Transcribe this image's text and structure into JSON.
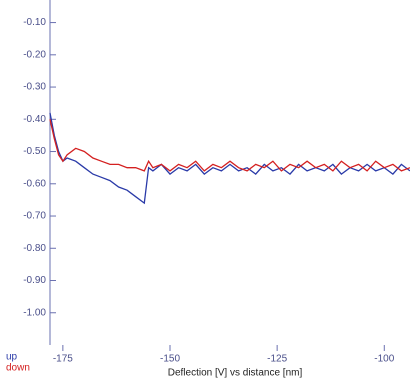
{
  "chart_data": {
    "type": "line",
    "xlabel": "Deflection [V] vs distance [nm]",
    "x": [
      -178,
      -177,
      -176,
      -175,
      -174,
      -172,
      -170,
      -168,
      -166,
      -164,
      -162,
      -160,
      -158,
      -156,
      -155,
      -154,
      -152,
      -150,
      -148,
      -146,
      -144,
      -142,
      -140,
      -138,
      -136,
      -134,
      -132,
      -130,
      -128,
      -126,
      -124,
      -122,
      -120,
      -118,
      -116,
      -114,
      -112,
      -110,
      -108,
      -106,
      -104,
      -102,
      -100,
      -98,
      -96,
      -94
    ],
    "series": [
      {
        "name": "up",
        "color": "#2a3aa8",
        "values": [
          -0.38,
          -0.45,
          -0.5,
          -0.53,
          -0.52,
          -0.53,
          -0.55,
          -0.57,
          -0.58,
          -0.59,
          -0.61,
          -0.62,
          -0.64,
          -0.66,
          -0.55,
          -0.56,
          -0.54,
          -0.57,
          -0.55,
          -0.56,
          -0.54,
          -0.57,
          -0.55,
          -0.56,
          -0.54,
          -0.56,
          -0.55,
          -0.57,
          -0.54,
          -0.56,
          -0.55,
          -0.57,
          -0.54,
          -0.56,
          -0.55,
          -0.56,
          -0.54,
          -0.57,
          -0.55,
          -0.56,
          -0.54,
          -0.56,
          -0.55,
          -0.57,
          -0.54,
          -0.56
        ]
      },
      {
        "name": "down",
        "color": "#d42020",
        "values": [
          -0.4,
          -0.46,
          -0.51,
          -0.53,
          -0.51,
          -0.49,
          -0.5,
          -0.52,
          -0.53,
          -0.54,
          -0.54,
          -0.55,
          -0.55,
          -0.56,
          -0.53,
          -0.55,
          -0.54,
          -0.56,
          -0.54,
          -0.55,
          -0.53,
          -0.56,
          -0.54,
          -0.55,
          -0.53,
          -0.55,
          -0.56,
          -0.54,
          -0.55,
          -0.53,
          -0.56,
          -0.54,
          -0.55,
          -0.53,
          -0.55,
          -0.54,
          -0.56,
          -0.53,
          -0.55,
          -0.54,
          -0.56,
          -0.53,
          -0.55,
          -0.54,
          -0.56,
          -0.55
        ]
      }
    ],
    "xlim": [
      -178,
      -94
    ],
    "ylim": [
      -1.1,
      -0.03
    ],
    "xticks": [
      -175,
      -150,
      -125,
      -100
    ],
    "yticks": [
      {
        "value": -0.1,
        "label": "-0.10"
      },
      {
        "value": -0.2,
        "label": "-0.20"
      },
      {
        "value": -0.3,
        "label": "-0.30"
      },
      {
        "value": -0.4,
        "label": "-0.40"
      },
      {
        "value": -0.5,
        "label": "-0.50"
      },
      {
        "value": -0.6,
        "label": "-0.60"
      },
      {
        "value": -0.7,
        "label": "-0.70"
      },
      {
        "value": -0.8,
        "label": "-0.80"
      },
      {
        "value": -0.9,
        "label": "-0.90"
      },
      {
        "value": -1.0,
        "label": "-1.00"
      }
    ],
    "legend": "bottom-left"
  }
}
